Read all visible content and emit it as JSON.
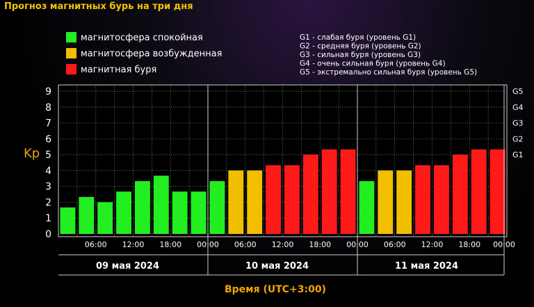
{
  "page": {
    "title": "Прогноз магнитных бурь на три дня"
  },
  "legend": {
    "items": [
      {
        "label": "магнитосфера спокойная",
        "color": "#22ee22"
      },
      {
        "label": "магнитосфера возбужденная",
        "color": "#f0c000"
      },
      {
        "label": "магнитная буря",
        "color": "#ff1a1a"
      }
    ],
    "storm_levels": [
      "G1 - слабая буря (уровень G1)",
      "G2 - средняя буря (уровень G2)",
      "G3 - сильная буря (уровень G3)",
      "G4 - очень сильная буря (уровень G4)",
      "G5 - экстремально сильная буря (уровень G5)"
    ]
  },
  "chart_data": {
    "type": "bar",
    "ylabel": "Kp",
    "xlabel": "Время (UTC+3:00)",
    "ylim": [
      0,
      9
    ],
    "y_ticks": [
      "0",
      "1",
      "2",
      "3",
      "4",
      "5",
      "6",
      "7",
      "8",
      "9"
    ],
    "right_ticks": [
      {
        "label": "G1",
        "value": 5
      },
      {
        "label": "G2",
        "value": 6
      },
      {
        "label": "G3",
        "value": 7
      },
      {
        "label": "G4",
        "value": 8
      },
      {
        "label": "G5",
        "value": 9
      }
    ],
    "grid": true,
    "days": [
      "09 мая 2024",
      "10 мая 2024",
      "11 мая 2024"
    ],
    "time_ticks": [
      "06:00",
      "12:00",
      "18:00",
      "00:00",
      "06:00",
      "12:00",
      "18:00",
      "00:00",
      "06:00",
      "12:00",
      "18:00",
      "00:00"
    ],
    "values": [
      1.67,
      2.33,
      2.0,
      2.67,
      3.33,
      3.67,
      2.67,
      2.67,
      3.33,
      4.0,
      4.0,
      4.33,
      4.33,
      5.0,
      5.33,
      5.33,
      3.33,
      4.0,
      4.0,
      4.33,
      4.33,
      5.0,
      5.33,
      5.33
    ],
    "colors": {
      "quiet": "#22ee22",
      "active": "#f0c000",
      "storm": "#ff1a1a"
    },
    "thresholds": {
      "active": 4,
      "storm": 4.33
    }
  }
}
